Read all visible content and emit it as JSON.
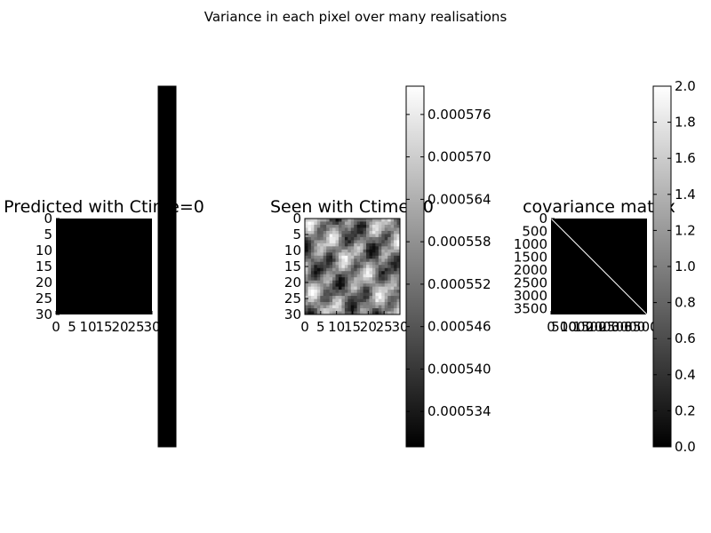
{
  "suptitle": "Variance in each pixel over many realisations",
  "chart_data": [
    {
      "type": "heatmap",
      "title": "Predicted with Ctime=0",
      "colormap": "gray",
      "grid": false,
      "xticks": [
        "0",
        "5",
        "10",
        "15",
        "20",
        "25",
        "30"
      ],
      "yticks": [
        "0",
        "5",
        "10",
        "15",
        "20",
        "25",
        "30"
      ],
      "rows": 31,
      "cols": 31,
      "uniform_value": 0,
      "colorbar_ticks": []
    },
    {
      "type": "heatmap",
      "title": "Seen with Ctime=0",
      "colormap": "gray",
      "grid": false,
      "xticks": [
        "0",
        "5",
        "10",
        "15",
        "20",
        "25",
        "30"
      ],
      "yticks": [
        "0",
        "5",
        "10",
        "15",
        "20",
        "25",
        "30"
      ],
      "rows": 31,
      "cols": 31,
      "vmin": 0.000529,
      "vmax": 0.00058,
      "pattern": "noisy diagonal streaks",
      "colorbar_ticks": [
        "0.000534",
        "0.000540",
        "0.000546",
        "0.000552",
        "0.000558",
        "0.000564",
        "0.000570",
        "0.000576"
      ]
    },
    {
      "type": "heatmap",
      "title": "covariance matrix",
      "colormap": "gray",
      "grid": false,
      "xticks": [
        "0",
        "500",
        "1000",
        "1500",
        "2000",
        "2500",
        "3000",
        "3500"
      ],
      "yticks": [
        "0",
        "500",
        "1000",
        "1500",
        "2000",
        "2500",
        "3000",
        "3500"
      ],
      "size": 3721,
      "diagonal_value": 2.0,
      "offdiagonal_value": 0.0,
      "vmin": 0.0,
      "vmax": 2.0,
      "colorbar_ticks": [
        "0.0",
        "0.2",
        "0.4",
        "0.6",
        "0.8",
        "1.0",
        "1.2",
        "1.4",
        "1.6",
        "1.8",
        "2.0"
      ]
    }
  ]
}
